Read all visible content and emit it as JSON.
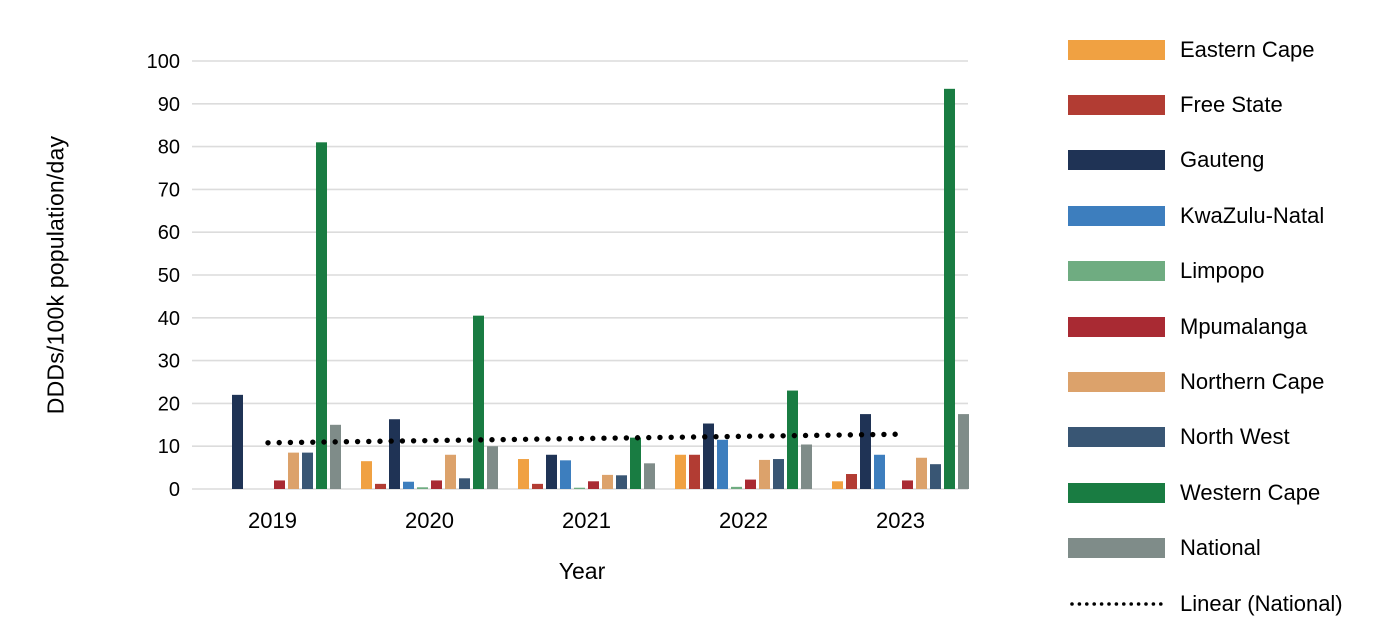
{
  "chart_data": {
    "type": "bar",
    "title": "",
    "xlabel": "Year",
    "ylabel": "DDDs/100k population/day",
    "ylim": [
      0,
      100
    ],
    "ytick_step": 10,
    "grid": "horizontal-light",
    "legend_position": "right",
    "categories": [
      "2019",
      "2020",
      "2021",
      "2022",
      "2023"
    ],
    "series": [
      {
        "name": "Eastern Cape",
        "color": "#F0A142",
        "values": [
          0,
          6.5,
          7.0,
          8.0,
          1.8
        ]
      },
      {
        "name": "Free State",
        "color": "#B23C33",
        "values": [
          0,
          1.2,
          1.2,
          8.0,
          3.5
        ]
      },
      {
        "name": "Gauteng",
        "color": "#1F3355",
        "values": [
          22.0,
          16.3,
          8.0,
          15.3,
          17.5
        ]
      },
      {
        "name": "KwaZulu-Natal",
        "color": "#3D7EBE",
        "values": [
          0,
          1.7,
          6.7,
          11.5,
          8.0
        ]
      },
      {
        "name": "Limpopo",
        "color": "#6FAC81",
        "values": [
          0,
          0.4,
          0.3,
          0.5,
          0
        ]
      },
      {
        "name": "Mpumalanga",
        "color": "#A92A33",
        "values": [
          2.0,
          2.0,
          1.8,
          2.2,
          2.0
        ]
      },
      {
        "name": "Northern Cape",
        "color": "#DCA26B",
        "values": [
          8.5,
          8.0,
          3.3,
          6.8,
          7.3
        ]
      },
      {
        "name": "North West",
        "color": "#395674",
        "values": [
          8.5,
          2.5,
          3.2,
          7.0,
          5.8
        ]
      },
      {
        "name": "Western Cape",
        "color": "#197C42",
        "values": [
          81.0,
          40.5,
          12.0,
          23.0,
          93.5
        ]
      },
      {
        "name": "National",
        "color": "#7F8C89",
        "values": [
          15.0,
          10.0,
          6.0,
          10.4,
          17.5
        ]
      }
    ],
    "trendline": {
      "name": "Linear (National)",
      "color": "#000000",
      "style": "dotted",
      "values_at_ends": [
        10.8,
        12.8
      ]
    },
    "colors": {
      "gridline": "#DCDCDC",
      "text": "#000000",
      "background": "#FFFFFF"
    }
  }
}
